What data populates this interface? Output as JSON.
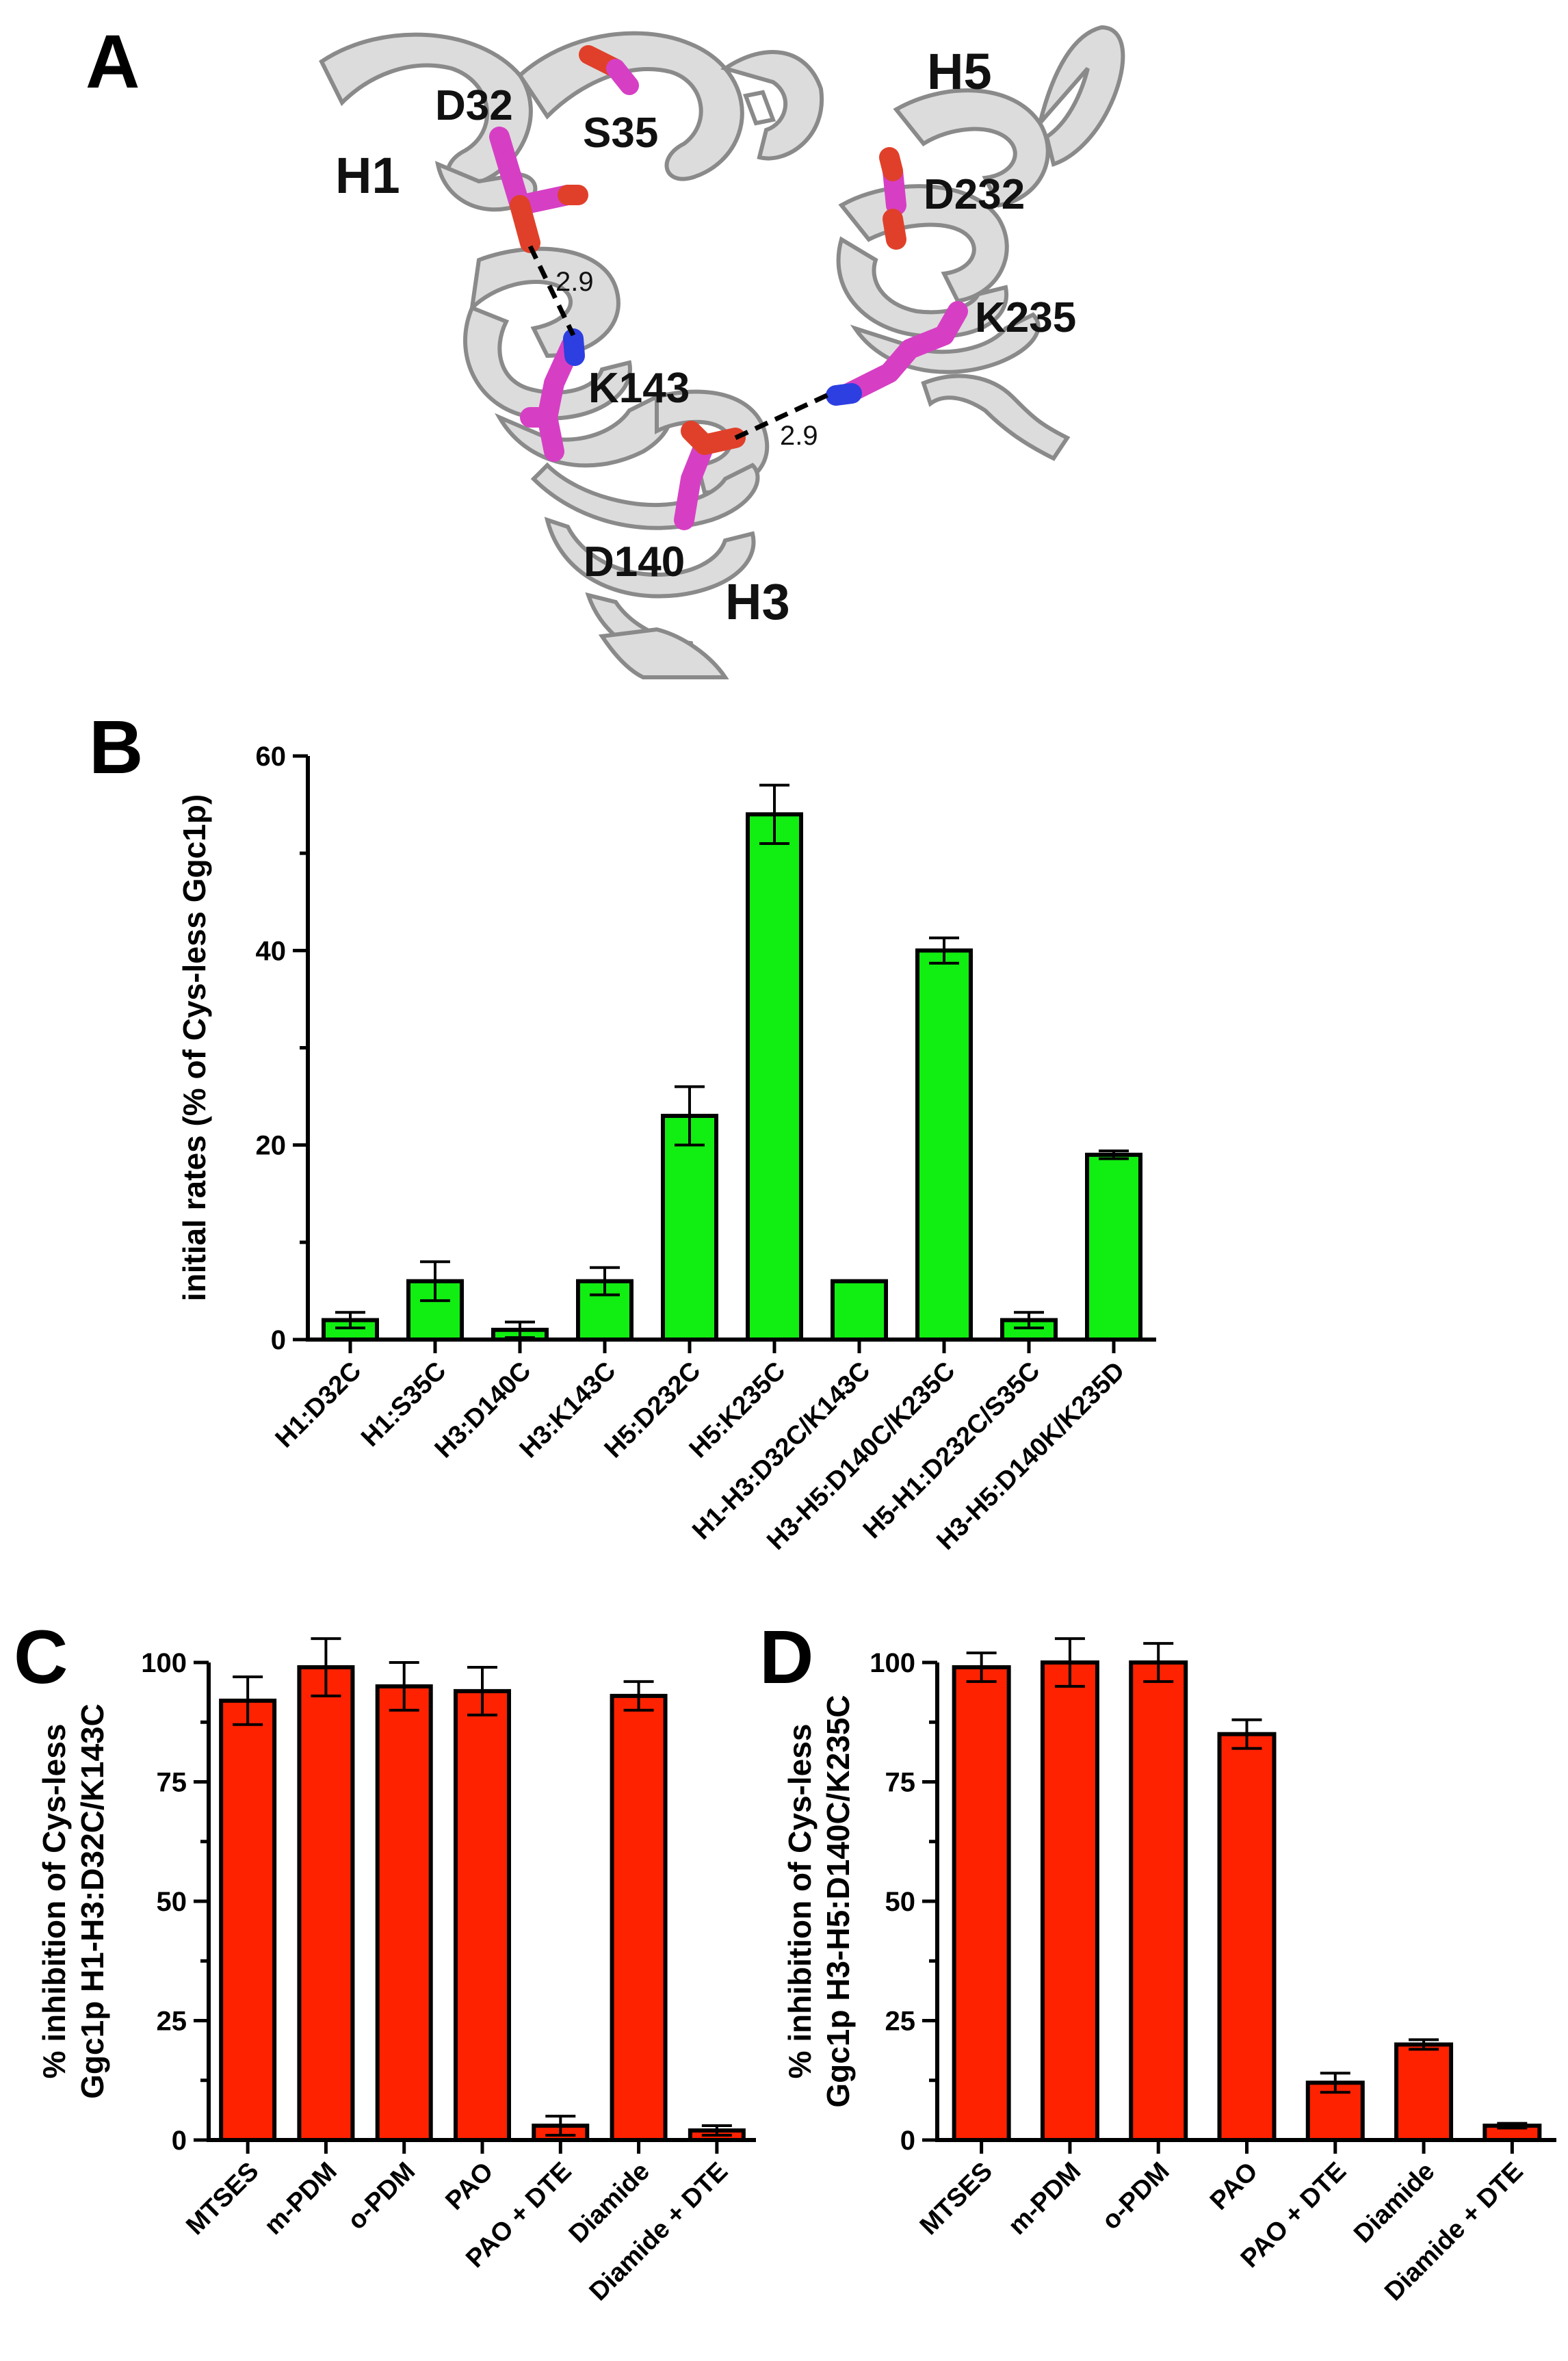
{
  "panels": {
    "A": {
      "letter": "A",
      "helix_labels": [
        "H1",
        "H5",
        "H3"
      ],
      "residue_labels": [
        "D32",
        "S35",
        "D232",
        "K235",
        "K143",
        "D140"
      ],
      "distance_labels": [
        "2.9",
        "2.9"
      ],
      "colors": {
        "ribbon": "#dcdcdc",
        "ribbon_edge": "#8a8a8a",
        "sidechain": "#d63fc4",
        "oxygen": "#e0402a",
        "nitrogen": "#2d3fe0"
      }
    },
    "B": {
      "letter": "B"
    },
    "C": {
      "letter": "C"
    },
    "D": {
      "letter": "D"
    }
  },
  "chart_data": [
    {
      "panel": "B",
      "type": "bar",
      "ylabel": "initial rates (% of Cys-less Ggc1p)",
      "ylim": [
        0,
        60
      ],
      "yticks": [
        0,
        20,
        40,
        60
      ],
      "categories": [
        "H1:D32C",
        "H1:S35C",
        "H3:D140C",
        "H3:K143C",
        "H5:D232C",
        "H5:K235C",
        "H1-H3:D32C/K143C",
        "H3-H5:D140C/K235C",
        "H5-H1:D232C/S35C",
        "H3-H5:D140K/K235D"
      ],
      "values": [
        2,
        6,
        1,
        6,
        23,
        54,
        6,
        40,
        2,
        19
      ],
      "errors": [
        0.8,
        2,
        0.8,
        1.4,
        3,
        3,
        0,
        1.3,
        0.8,
        0.4
      ],
      "bar_color": "#11ee11"
    },
    {
      "panel": "C",
      "type": "bar",
      "ylabel": "% inhibition of Cys-less\nGgc1p H1-H3:D32C/K143C",
      "ylim": [
        0,
        100
      ],
      "yticks": [
        0,
        25,
        50,
        75,
        100
      ],
      "categories": [
        "MTSES",
        "m-PDM",
        "o-PDM",
        "PAO",
        "PAO + DTE",
        "Diamide",
        "Diamide + DTE"
      ],
      "values": [
        92,
        99,
        95,
        94,
        3,
        93,
        2
      ],
      "errors": [
        5,
        6,
        5,
        5,
        2,
        3,
        1
      ],
      "bar_color": "#ff2200"
    },
    {
      "panel": "D",
      "type": "bar",
      "ylabel": "% inhibition of Cys-less\nGgc1p H3-H5:D140C/K235C",
      "ylim": [
        0,
        100
      ],
      "yticks": [
        0,
        25,
        50,
        75,
        100
      ],
      "categories": [
        "MTSES",
        "m-PDM",
        "o-PDM",
        "PAO",
        "PAO + DTE",
        "Diamide",
        "Diamide + DTE"
      ],
      "values": [
        99,
        100,
        100,
        85,
        12,
        20,
        3
      ],
      "errors": [
        3,
        5,
        4,
        3,
        2,
        1,
        0.5
      ],
      "bar_color": "#ff2200"
    }
  ]
}
